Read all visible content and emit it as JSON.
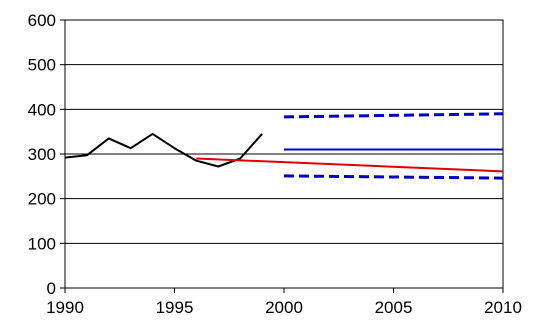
{
  "chart_data": {
    "type": "line",
    "title": "",
    "xlabel": "",
    "ylabel": "",
    "xlim": [
      1990,
      2010
    ],
    "ylim": [
      0,
      600
    ],
    "x_ticks": [
      1990,
      1995,
      2000,
      2005,
      2010
    ],
    "y_ticks": [
      0,
      100,
      200,
      300,
      400,
      500,
      600
    ],
    "grid": {
      "horizontal": true,
      "vertical": false
    },
    "legend": "none",
    "series": [
      {
        "color": "#000000",
        "style": "solid",
        "x": [
          1990,
          1991,
          1992,
          1993,
          1994,
          1995,
          1996,
          1997,
          1998,
          1999
        ],
        "y": [
          292,
          297,
          335,
          313,
          345,
          313,
          285,
          272,
          290,
          345
        ]
      },
      {
        "color": "#e00000",
        "style": "solid",
        "x": [
          1996,
          2010
        ],
        "y": [
          290,
          261
        ]
      },
      {
        "color": "#0000cc",
        "style": "solid",
        "x": [
          2000,
          2010
        ],
        "y": [
          310,
          310
        ]
      },
      {
        "color": "#0000cc",
        "style": "dashed",
        "x": [
          2000,
          2010
        ],
        "y": [
          383,
          390
        ]
      },
      {
        "color": "#0000cc",
        "style": "dashed",
        "x": [
          2000,
          2010
        ],
        "y": [
          251,
          246
        ]
      }
    ]
  }
}
